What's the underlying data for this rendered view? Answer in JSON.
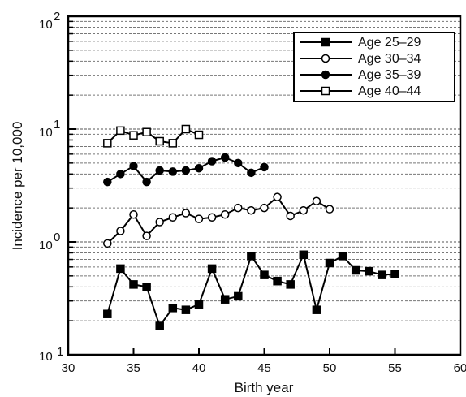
{
  "chart_data": {
    "type": "line",
    "title": "",
    "xlabel": "Birth year",
    "ylabel": "Incidence per 10,000",
    "xlim": [
      30,
      60
    ],
    "ylim": [
      0.1,
      100
    ],
    "yscale": "log",
    "x_ticks": [
      "30",
      "35",
      "40",
      "45",
      "50",
      "55",
      "60"
    ],
    "y_ticks": [
      {
        "base": "10",
        "exp": "2"
      },
      {
        "base": "10",
        "exp": "1"
      },
      {
        "base": "10",
        "exp": "0"
      },
      {
        "base": "10",
        "exp": "1"
      }
    ],
    "grid": "horizontal dashed lines at log sub-divisions",
    "legend_position": "top-right",
    "series": [
      {
        "name": "Age 25–29",
        "marker": "filled-square",
        "x": [
          33,
          34,
          35,
          36,
          37,
          38,
          39,
          40,
          41,
          42,
          43,
          44,
          45,
          46,
          47,
          48,
          49,
          50,
          51,
          52,
          53,
          54,
          55
        ],
        "y": [
          0.23,
          0.58,
          0.42,
          0.4,
          0.18,
          0.26,
          0.25,
          0.28,
          0.58,
          0.31,
          0.33,
          0.75,
          0.51,
          0.45,
          0.42,
          0.77,
          0.25,
          0.65,
          0.75,
          0.56,
          0.55,
          0.51,
          0.52
        ]
      },
      {
        "name": "Age 30–34",
        "marker": "open-circle",
        "x": [
          33,
          34,
          35,
          36,
          37,
          38,
          39,
          40,
          41,
          42,
          43,
          44,
          45,
          46,
          47,
          48,
          49,
          50
        ],
        "y": [
          0.97,
          1.25,
          1.75,
          1.13,
          1.5,
          1.65,
          1.8,
          1.6,
          1.65,
          1.75,
          2.0,
          1.9,
          2.0,
          2.5,
          1.7,
          1.9,
          2.3,
          1.95
        ]
      },
      {
        "name": "Age 35–39",
        "marker": "filled-circle",
        "x": [
          33,
          34,
          35,
          36,
          37,
          38,
          39,
          40,
          41,
          42,
          43,
          44,
          45
        ],
        "y": [
          3.4,
          4.0,
          4.7,
          3.4,
          4.3,
          4.2,
          4.3,
          4.5,
          5.2,
          5.6,
          5.0,
          4.1,
          4.6
        ]
      },
      {
        "name": "Age 40–44",
        "marker": "open-square",
        "x": [
          33,
          34,
          35,
          36,
          37,
          38,
          39,
          40
        ],
        "y": [
          7.5,
          9.7,
          8.8,
          9.4,
          7.8,
          7.5,
          10.0,
          8.9
        ]
      }
    ]
  }
}
